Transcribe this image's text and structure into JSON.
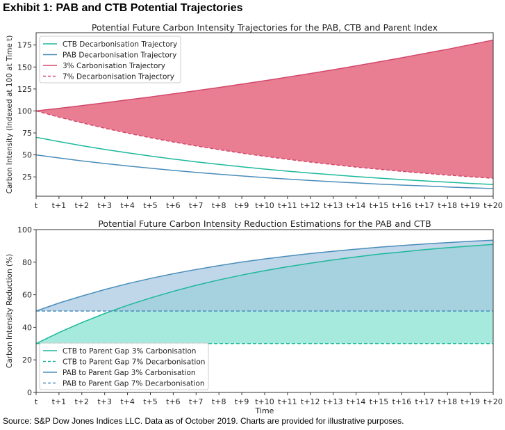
{
  "exhibit_title": "Exhibit 1: PAB and CTB Potential Trajectories",
  "source": "Source: S&P Dow Jones Indices LLC. Data as of October 2019. Charts are provided for illustrative purposes.",
  "colors": {
    "ctb": "#1cb89a",
    "pab": "#4a8dbb",
    "carb": "#d2486a",
    "fill_red": "#e97e92",
    "fill_ctb": "#84e0d0",
    "fill_pab": "#a6c8df"
  },
  "chart_data": [
    {
      "type": "line",
      "title": "Potential Future Carbon Intensity Trajectories for the PAB, CTB and Parent Index",
      "xlabel": "",
      "ylabel": "Carbon Intensity (Indexed at 100 at Time t)",
      "categories": [
        "t",
        "t+1",
        "t+2",
        "t+3",
        "t+4",
        "t+5",
        "t+6",
        "t+7",
        "t+8",
        "t+9",
        "t+10",
        "t+11",
        "t+12",
        "t+13",
        "t+14",
        "t+15",
        "t+16",
        "t+17",
        "t+18",
        "t+19",
        "t+20"
      ],
      "ylim": [
        3,
        189
      ],
      "yticks": [
        25,
        50,
        75,
        100,
        125,
        150,
        175
      ],
      "legend_position": "top-left",
      "series": [
        {
          "name": "CTB Decarbonisation Trajectory",
          "style": "solid",
          "color": "#1cb89a",
          "values": [
            70,
            65.1,
            60.5,
            56.3,
            52.4,
            48.7,
            45.3,
            42.1,
            39.2,
            36.4,
            33.9,
            31.5,
            29.3,
            27.3,
            25.3,
            23.6,
            21.9,
            20.4,
            19.0,
            17.6,
            16.4
          ]
        },
        {
          "name": "PAB Decarbonisation Trajectory",
          "style": "solid",
          "color": "#4a8dbb",
          "values": [
            50,
            46.5,
            43.2,
            40.2,
            37.4,
            34.8,
            32.4,
            30.1,
            28.0,
            26.0,
            24.2,
            22.5,
            20.9,
            19.5,
            18.1,
            16.8,
            15.7,
            14.6,
            13.5,
            12.6,
            11.7
          ]
        },
        {
          "name": "3% Carbonisation Trajectory",
          "style": "solid",
          "color": "#d2486a",
          "values": [
            100,
            103,
            106.1,
            109.3,
            112.6,
            115.9,
            119.4,
            123.0,
            126.7,
            130.5,
            134.4,
            138.4,
            142.6,
            146.9,
            151.3,
            155.8,
            160.5,
            165.3,
            170.2,
            175.4,
            180.6
          ]
        },
        {
          "name": "7% Decarbonisation Trajectory",
          "style": "dashed",
          "color": "#d2486a",
          "values": [
            100,
            93,
            86.5,
            80.4,
            74.8,
            69.6,
            64.7,
            60.2,
            56.0,
            52.0,
            48.4,
            45.0,
            41.9,
            38.9,
            36.2,
            33.7,
            31.3,
            29.1,
            27.1,
            25.2,
            23.4
          ]
        }
      ],
      "fills": [
        {
          "between": [
            2,
            3
          ],
          "color": "#e97e92"
        }
      ]
    },
    {
      "type": "line",
      "title": "Potential Future Carbon Intensity Reduction Estimations for the PAB and CTB",
      "xlabel": "Time",
      "ylabel": "Carbon Intensity Reduction (%)",
      "categories": [
        "t",
        "t+1",
        "t+2",
        "t+3",
        "t+4",
        "t+5",
        "t+6",
        "t+7",
        "t+8",
        "t+9",
        "t+10",
        "t+11",
        "t+12",
        "t+13",
        "t+14",
        "t+15",
        "t+16",
        "t+17",
        "t+18",
        "t+19",
        "t+20"
      ],
      "ylim": [
        0,
        100
      ],
      "yticks": [
        0,
        20,
        40,
        60,
        80,
        100
      ],
      "legend_position": "bottom-left",
      "series": [
        {
          "name": "CTB to Parent Gap 3% Carbonisation",
          "style": "solid",
          "color": "#1cb89a",
          "values": [
            30,
            36.8,
            42.9,
            48.5,
            53.5,
            58.0,
            62.1,
            65.8,
            69.1,
            72.1,
            74.8,
            77.2,
            79.4,
            81.4,
            83.2,
            84.9,
            86.3,
            87.7,
            88.9,
            89.9,
            90.9
          ]
        },
        {
          "name": "CTB to Parent Gap 7% Decarbonisation",
          "style": "dashed",
          "color": "#1cb89a",
          "values": [
            30,
            30,
            30,
            30,
            30,
            30,
            30,
            30,
            30,
            30,
            30,
            30,
            30,
            30,
            30,
            30,
            30,
            30,
            30,
            30,
            30
          ]
        },
        {
          "name": "PAB to Parent Gap 3% Carbonisation",
          "style": "solid",
          "color": "#4a8dbb",
          "values": [
            50,
            54.9,
            59.2,
            63.2,
            66.8,
            70.0,
            72.9,
            75.5,
            77.9,
            80.1,
            82.0,
            83.7,
            85.3,
            86.7,
            88.0,
            89.2,
            90.2,
            91.2,
            92.0,
            92.8,
            93.5
          ]
        },
        {
          "name": "PAB to Parent Gap 7% Decarbonisation",
          "style": "dashed",
          "color": "#4a8dbb",
          "values": [
            50,
            50,
            50,
            50,
            50,
            50,
            50,
            50,
            50,
            50,
            50,
            50,
            50,
            50,
            50,
            50,
            50,
            50,
            50,
            50,
            50
          ]
        }
      ],
      "fills": [
        {
          "between": [
            0,
            1
          ],
          "color": "#84e0d0"
        },
        {
          "between": [
            2,
            3
          ],
          "color": "#a6c8df"
        }
      ]
    }
  ]
}
